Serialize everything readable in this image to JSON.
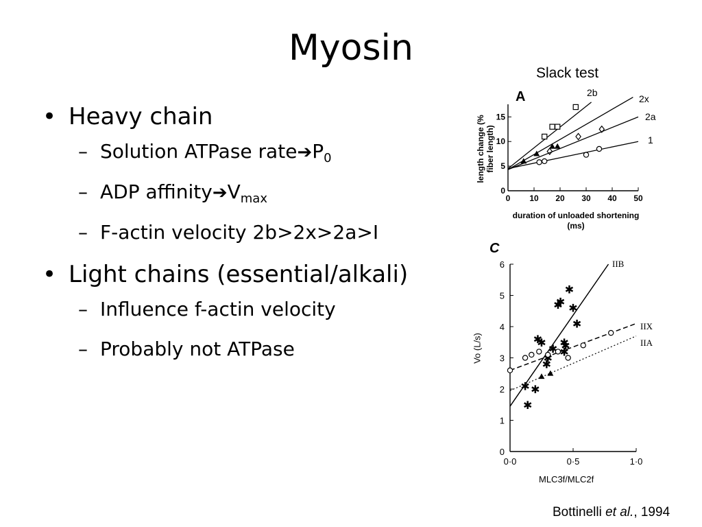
{
  "slide": {
    "title": "Myosin",
    "bullets": [
      {
        "text": "Heavy chain",
        "subs": [
          {
            "before": "Solution ATPase rate",
            "after": "P",
            "sub": "0"
          },
          {
            "before": "ADP affinity",
            "after": "V",
            "sub": "max"
          },
          {
            "text": "F-actin velocity 2b>2x>2a>I"
          }
        ]
      },
      {
        "text": "Light chains (essential/alkali)",
        "subs": [
          {
            "text": "Influence f-actin velocity"
          },
          {
            "text": "Probably not ATPase"
          }
        ]
      }
    ],
    "citation": {
      "author": "Bottinelli ",
      "etal": "et al.",
      "year": ", 1994"
    }
  },
  "chart_data": [
    {
      "type": "scatter",
      "panel_label": "A",
      "title": "Slack test",
      "xlabel": "duration of unloaded shortening (ms)",
      "ylabel": "length change (% fiber length)",
      "xlim": [
        0,
        50
      ],
      "ylim": [
        0,
        17
      ],
      "xticks": [
        0,
        10,
        20,
        30,
        40,
        50
      ],
      "yticks": [
        0,
        5,
        10,
        15
      ],
      "series": [
        {
          "name": "2b",
          "marker": "square",
          "line": [
            [
              0,
              4.5
            ],
            [
              32,
              18
            ]
          ],
          "points": [
            [
              14,
              11
            ],
            [
              17,
              13
            ],
            [
              19,
              13
            ],
            [
              26,
              17
            ]
          ]
        },
        {
          "name": "2x",
          "marker": "diamond",
          "line": [
            [
              0,
              4.3
            ],
            [
              48,
              19
            ]
          ],
          "points": [
            [
              16,
              8
            ],
            [
              27,
              11
            ],
            [
              36,
              12.5
            ]
          ]
        },
        {
          "name": "2a",
          "marker": "triangle",
          "line": [
            [
              0,
              4.3
            ],
            [
              50,
              15
            ]
          ],
          "points": [
            [
              6,
              6
            ],
            [
              11,
              7.5
            ],
            [
              17,
              9
            ],
            [
              19,
              9
            ]
          ]
        },
        {
          "name": "1",
          "marker": "circle",
          "line": [
            [
              0,
              4.5
            ],
            [
              50,
              10
            ]
          ],
          "points": [
            [
              12,
              5.8
            ],
            [
              14,
              6
            ],
            [
              30,
              7.3
            ],
            [
              35,
              8.5
            ]
          ]
        }
      ]
    },
    {
      "type": "scatter",
      "panel_label": "C",
      "xlabel": "MLC3f/MLC2f",
      "ylabel": "Vo (L/s)",
      "xlim": [
        0,
        1.0
      ],
      "ylim": [
        0,
        6
      ],
      "xticks": [
        "0·0",
        "0·5",
        "1·0"
      ],
      "yticks": [
        0,
        1,
        2,
        3,
        4,
        5,
        6
      ],
      "series": [
        {
          "name": "IIB",
          "marker": "star",
          "line": [
            [
              0,
              1.45
            ],
            [
              0.78,
              6.0
            ]
          ],
          "points": [
            [
              0.12,
              2.1
            ],
            [
              0.14,
              1.5
            ],
            [
              0.2,
              2.0
            ],
            [
              0.22,
              3.6
            ],
            [
              0.25,
              3.5
            ],
            [
              0.29,
              2.8
            ],
            [
              0.3,
              3.0
            ],
            [
              0.34,
              3.3
            ],
            [
              0.38,
              4.7
            ],
            [
              0.4,
              4.8
            ],
            [
              0.43,
              3.5
            ],
            [
              0.44,
              3.4
            ],
            [
              0.47,
              5.2
            ],
            [
              0.5,
              4.6
            ],
            [
              0.53,
              4.1
            ],
            [
              0.43,
              3.2
            ]
          ]
        },
        {
          "name": "IIX",
          "marker": "circle",
          "line": [
            [
              0,
              2.6
            ],
            [
              1.0,
              4.1
            ]
          ],
          "points": [
            [
              0.0,
              2.6
            ],
            [
              0.12,
              3.0
            ],
            [
              0.17,
              3.1
            ],
            [
              0.23,
              3.2
            ],
            [
              0.3,
              3.1
            ],
            [
              0.38,
              3.2
            ],
            [
              0.46,
              3.0
            ],
            [
              0.58,
              3.4
            ],
            [
              0.8,
              3.8
            ]
          ]
        },
        {
          "name": "IIA",
          "marker": "triangle",
          "line": [
            [
              0,
              1.95
            ],
            [
              1.0,
              3.7
            ]
          ],
          "points": [
            [
              0.25,
              2.4
            ],
            [
              0.32,
              2.5
            ]
          ]
        }
      ]
    }
  ]
}
